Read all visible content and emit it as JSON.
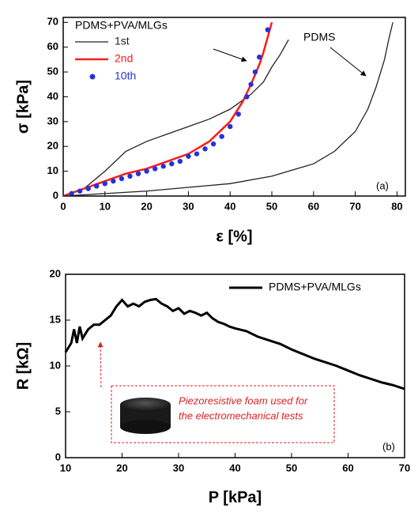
{
  "chart_data": [
    {
      "type": "line",
      "xlabel": "ε [%]",
      "ylabel": "σ [kPa]",
      "xlim": [
        0,
        82
      ],
      "ylim": [
        0,
        72
      ],
      "xticks": [
        0,
        10,
        20,
        30,
        40,
        50,
        60,
        70,
        80
      ],
      "yticks": [
        0,
        10,
        20,
        30,
        40,
        50,
        60,
        70
      ],
      "legend_title": "PDMS+PVA/MLGs",
      "legend": "upper left",
      "series": [
        {
          "name": "1st",
          "color": "#222222",
          "x": [
            0,
            5,
            10,
            15,
            20,
            25,
            30,
            35,
            40,
            45,
            48,
            50,
            52,
            54
          ],
          "values": [
            0,
            3,
            10,
            18,
            22,
            25,
            28,
            31,
            35,
            41,
            46,
            52,
            57,
            63
          ]
        },
        {
          "name": "2nd",
          "color": "#ff1a1a",
          "x": [
            0,
            5,
            10,
            15,
            20,
            25,
            30,
            35,
            40,
            43,
            45,
            47,
            48,
            49,
            50
          ],
          "values": [
            0,
            3,
            6,
            9,
            11,
            14,
            17,
            22,
            30,
            38,
            45,
            53,
            58,
            64,
            70
          ]
        },
        {
          "name": "10th",
          "color": "#2233dd",
          "marker": "circle",
          "x": [
            2,
            4,
            6,
            8,
            10,
            12,
            14,
            16,
            18,
            20,
            22,
            24,
            26,
            28,
            30,
            32,
            34,
            36,
            38,
            40,
            42,
            44,
            45,
            46,
            47,
            49
          ],
          "values": [
            1,
            2,
            3,
            4,
            5,
            6,
            7,
            8,
            9,
            10,
            11,
            12,
            13,
            14,
            16,
            17,
            19,
            21,
            24,
            28,
            33,
            40,
            45,
            50,
            56,
            67
          ]
        },
        {
          "color": "#222222",
          "x": [
            0,
            10,
            20,
            30,
            40,
            50,
            60,
            65,
            70,
            73,
            75,
            77,
            78,
            79
          ],
          "values": [
            0,
            1,
            2,
            3.5,
            5,
            8,
            13,
            18,
            26,
            35,
            44,
            55,
            63,
            70
          ]
        }
      ],
      "annotations": [
        "PDMS",
        "(a)"
      ]
    },
    {
      "type": "line",
      "xlabel": "P [kPa]",
      "ylabel": "R [kΩ]",
      "xlim": [
        10,
        70
      ],
      "ylim": [
        0,
        20
      ],
      "xticks": [
        10,
        20,
        30,
        40,
        50,
        60,
        70
      ],
      "yticks": [
        0,
        5,
        10,
        15,
        20
      ],
      "legend": "upper right",
      "series": [
        {
          "name": "PDMS+PVA/MLGs",
          "color": "#000000",
          "x": [
            10,
            11,
            11.5,
            12,
            12.5,
            13,
            14,
            15,
            16,
            17,
            18,
            19,
            20,
            21,
            22,
            23,
            24,
            25,
            26,
            27,
            28,
            29,
            30,
            31,
            32,
            33,
            34,
            35,
            36,
            37,
            38,
            39,
            40,
            42,
            44,
            46,
            48,
            50,
            52,
            54,
            56,
            58,
            60,
            62,
            64,
            66,
            68,
            70
          ],
          "values": [
            11.5,
            12.5,
            14,
            12.5,
            14.3,
            13,
            14,
            14.5,
            14.5,
            15,
            15.5,
            16.5,
            17.2,
            16.5,
            16.8,
            16.5,
            17,
            17.2,
            17.3,
            16.8,
            16.5,
            16,
            16.3,
            15.7,
            16,
            15.8,
            15.5,
            15.8,
            15.2,
            14.8,
            14.6,
            14.3,
            14.1,
            13.8,
            13.2,
            12.8,
            12.4,
            11.8,
            11.3,
            10.8,
            10.4,
            10,
            9.5,
            9,
            8.6,
            8.2,
            7.9,
            7.5
          ]
        }
      ],
      "annotations": [
        "Piezoresistive foam used for",
        "the electromechanical tests",
        "(b)"
      ]
    }
  ]
}
